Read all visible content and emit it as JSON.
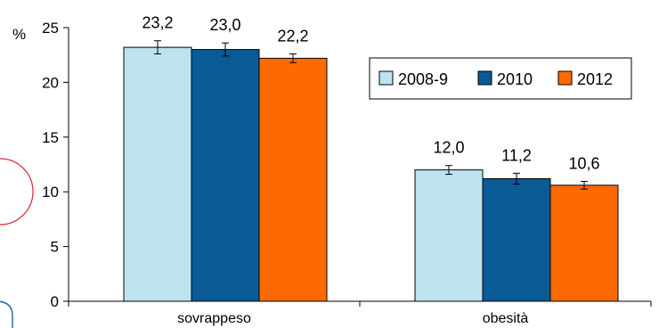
{
  "chart_data": {
    "type": "bar",
    "categories": [
      "sovrappeso",
      "obesità"
    ],
    "series": [
      {
        "name": "2008-9",
        "values": [
          23.2,
          12.0
        ],
        "labels": [
          "23,2",
          "12,0"
        ],
        "err": [
          0.6,
          0.4
        ],
        "color": "#BEE3F0"
      },
      {
        "name": "2010",
        "values": [
          23.0,
          11.2
        ],
        "labels": [
          "23,0",
          "11,2"
        ],
        "err": [
          0.6,
          0.5
        ],
        "color": "#0A5A96"
      },
      {
        "name": "2012",
        "values": [
          22.2,
          10.6
        ],
        "labels": [
          "22,2",
          "10,6"
        ],
        "err": [
          0.4,
          0.35
        ],
        "color": "#FF6A00"
      }
    ],
    "ylabel": "%",
    "ylim": [
      0,
      25
    ],
    "yticks": [
      0,
      5,
      10,
      15,
      20,
      25
    ],
    "grid": false,
    "legend": "top-right"
  }
}
